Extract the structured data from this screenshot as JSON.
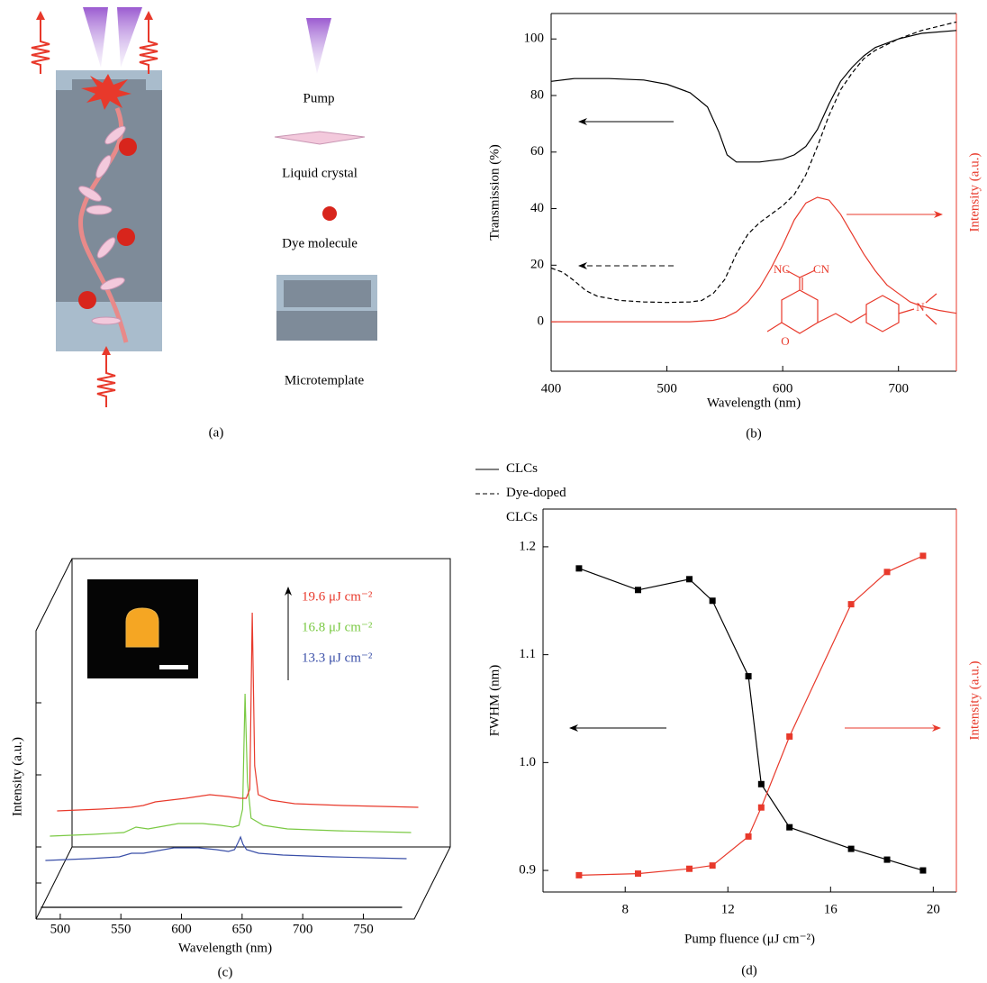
{
  "diagram": {
    "caption": "(a)",
    "labels": [
      "Pump",
      "Liquid crystal",
      "Dye molecule",
      "Microtemplate"
    ]
  },
  "chart_data": [
    {
      "type": "line",
      "caption": "(b)",
      "xlabel": "Wavelength (nm)",
      "ylabel": "Transmission (%)",
      "y2label": "Intensity (a.u.)",
      "xlim": [
        400,
        750
      ],
      "xticks": [
        400,
        500,
        600,
        700
      ],
      "ylim": [
        -17.5,
        109
      ],
      "yticks": [
        0,
        20,
        40,
        60,
        80,
        100
      ],
      "y2lim": [
        -17.5,
        109
      ],
      "legend": "below",
      "annotations": [
        "NC",
        "CN",
        "O",
        "N"
      ],
      "series": [
        {
          "name": "CLCs",
          "color": "#000000",
          "style": "solid",
          "x": [
            400,
            420,
            450,
            480,
            500,
            520,
            535,
            545,
            552,
            560,
            580,
            600,
            610,
            620,
            630,
            640,
            650,
            660,
            670,
            680,
            700,
            720,
            750
          ],
          "values": [
            85,
            86,
            86,
            85.5,
            84,
            81,
            76,
            67,
            59,
            56.5,
            56.5,
            57.5,
            59,
            62,
            68,
            77,
            85,
            90,
            94,
            97,
            100,
            102,
            103
          ]
        },
        {
          "name": "Dye-doped CLCs",
          "color": "#000000",
          "style": "dashed",
          "x": [
            400,
            410,
            420,
            430,
            440,
            460,
            480,
            500,
            520,
            530,
            540,
            550,
            560,
            570,
            580,
            590,
            600,
            610,
            620,
            630,
            640,
            650,
            660,
            670,
            680,
            700,
            720,
            750
          ],
          "values": [
            19,
            17.5,
            14.5,
            11,
            9,
            7.5,
            7,
            6.8,
            7,
            7.5,
            10,
            15,
            24,
            31,
            35,
            38,
            41,
            45,
            52,
            62,
            73,
            82,
            88,
            93,
            96,
            100,
            103,
            106
          ]
        },
        {
          "color": "#e8392b",
          "style": "solid",
          "axis": "y2",
          "x": [
            400,
            450,
            500,
            520,
            540,
            550,
            560,
            570,
            580,
            590,
            600,
            610,
            620,
            630,
            640,
            650,
            660,
            670,
            680,
            690,
            700,
            710,
            720,
            735,
            750
          ],
          "values": [
            0,
            0,
            0,
            0,
            0.5,
            1.5,
            3.5,
            7,
            12,
            19,
            27,
            36,
            42,
            44,
            43,
            38,
            31,
            24,
            18,
            13,
            10,
            7,
            5.5,
            4,
            3
          ]
        }
      ]
    },
    {
      "type": "waterfall",
      "caption": "(c)",
      "xlabel": "Wavelength (nm)",
      "ylabel": "Intensity (a.u.)",
      "xlim": [
        480,
        792
      ],
      "xticks": [
        500,
        550,
        600,
        650,
        700,
        750
      ],
      "ylim": [
        0,
        120
      ],
      "x": [
        484,
        520,
        545,
        555,
        565,
        590,
        610,
        625,
        635,
        640,
        643,
        645,
        647,
        650,
        660,
        680,
        720,
        782
      ],
      "series": [
        {
          "color": "#000000",
          "values": [
            0,
            0,
            0,
            0,
            0,
            0,
            0,
            0,
            0,
            0,
            0,
            0,
            0,
            0,
            0,
            0,
            0,
            0
          ]
        },
        {
          "name": "13.3 μJ cm⁻²",
          "color": "#3a4fa8",
          "values": [
            0,
            1,
            2,
            4,
            4,
            7,
            7,
            6,
            5,
            6,
            10,
            13,
            9,
            6,
            4,
            3,
            2,
            1
          ]
        },
        {
          "name": "16.8 μJ cm⁻²",
          "color": "#7ac943",
          "values": [
            0,
            1,
            2,
            5,
            4,
            7,
            7,
            6,
            5,
            6,
            15,
            79,
            30,
            10,
            6,
            4,
            3,
            2
          ]
        },
        {
          "name": "19.6 μJ cm⁻²",
          "color": "#e8392b",
          "values": [
            0,
            1,
            2,
            3,
            5,
            7,
            9,
            8,
            7,
            7,
            12,
            110,
            25,
            9,
            6,
            4,
            3,
            2
          ]
        }
      ]
    },
    {
      "type": "line",
      "caption": "(d)",
      "xlabel": "Pump fluence (μJ cm⁻²)",
      "ylabel": "FWHM (nm)",
      "y2label": "Intensity (a.u.)",
      "markers": "square",
      "xlim": [
        4.8,
        20.9
      ],
      "xticks": [
        8,
        12,
        16,
        20
      ],
      "ylim": [
        0.88,
        1.235
      ],
      "yticks": [
        0.9,
        {
          "value": 1,
          "label": "1.0"
        },
        1.1,
        1.2
      ],
      "y2lim": [
        -4.2,
        114.5
      ],
      "x": [
        6.2,
        8.5,
        10.5,
        11.4,
        12.8,
        13.3,
        14.4,
        16.8,
        18.2,
        19.6
      ],
      "series": [
        {
          "color": "#000000",
          "style": "solid",
          "values": [
            1.18,
            1.16,
            1.17,
            1.15,
            1.08,
            0.98,
            0.94,
            0.92,
            0.91,
            0.9
          ]
        },
        {
          "color": "#e8392b",
          "style": "solid",
          "axis": "y2",
          "values": [
            1,
            1.5,
            3,
            4,
            13,
            22,
            44,
            85,
            95,
            100
          ]
        }
      ]
    }
  ]
}
